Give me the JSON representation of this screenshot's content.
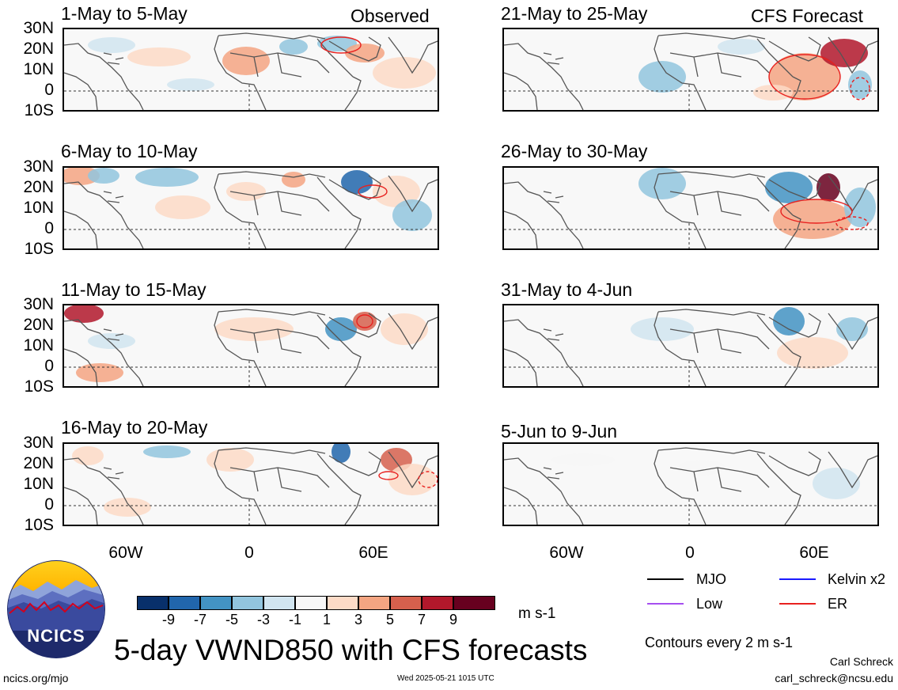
{
  "panels": [
    {
      "title": "1-May to 5-May",
      "tag": "Observed"
    },
    {
      "title": "21-May to 25-May",
      "tag": "CFS Forecast"
    },
    {
      "title": "6-May to 10-May",
      "tag": ""
    },
    {
      "title": "26-May to 30-May",
      "tag": ""
    },
    {
      "title": "11-May to 15-May",
      "tag": ""
    },
    {
      "title": "31-May to 4-Jun",
      "tag": ""
    },
    {
      "title": "16-May to 20-May",
      "tag": ""
    },
    {
      "title": "5-Jun to 9-Jun",
      "tag": ""
    }
  ],
  "lat_labels": [
    "30N",
    "20N",
    "10N",
    "0",
    "10S"
  ],
  "lon_labels": [
    "60W",
    "0",
    "60E"
  ],
  "colorbar": {
    "colors": [
      "#08306b",
      "#2166ac",
      "#4393c3",
      "#92c5de",
      "#d1e5f0",
      "#f7f7f7",
      "#fddbc7",
      "#f4a582",
      "#d6604d",
      "#b2182b",
      "#67001f"
    ],
    "labels": [
      "-9",
      "-7",
      "-5",
      "-3",
      "-1",
      "1",
      "3",
      "5",
      "7",
      "9"
    ],
    "unit": "m s-1"
  },
  "legend": {
    "items": [
      {
        "label": "MJO",
        "color": "#000000"
      },
      {
        "label": "Kelvin x2",
        "color": "#1a1aff"
      },
      {
        "label": "Low",
        "color": "#a64ff0"
      },
      {
        "label": "ER",
        "color": "#e8211f"
      }
    ],
    "note": "Contours every 2 m s-1"
  },
  "footer": {
    "title": "5-day VWND850 with CFS forecasts",
    "logo_text": "NCICS",
    "url": "ncics.org/mjo",
    "timestamp": "Wed 2025-05-21 1015 UTC",
    "author": "Carl Schreck",
    "email": "carl_schreck@ncsu.edu"
  },
  "colors": {
    "land": "#555555",
    "equator": "#333333",
    "background": "#f8f8f8"
  }
}
